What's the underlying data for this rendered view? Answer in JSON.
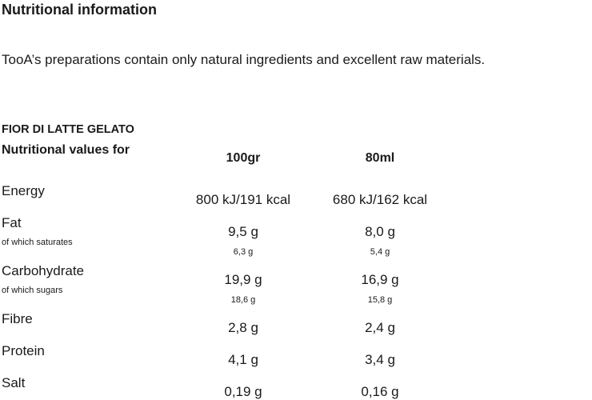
{
  "header": {
    "title": "Nutritional information"
  },
  "intro": "TooA’s preparations contain only natural ingredients and excellent raw materials.",
  "product": "FIOR DI LATTE GELATO",
  "table": {
    "columns": [
      "Nutritional values for",
      "100gr",
      "80ml"
    ],
    "rows": [
      {
        "label": "Energy",
        "values": [
          "800 kJ/191 kcal",
          "680 kJ/162 kcal"
        ]
      },
      {
        "label": "Fat",
        "values": [
          "9,5 g",
          "8,0 g"
        ],
        "sub": {
          "label": "of which saturates",
          "values": [
            "6,3 g",
            "5,4 g"
          ]
        }
      },
      {
        "label": "Carbohydrate",
        "values": [
          "19,9 g",
          "16,9 g"
        ],
        "sub": {
          "label": "of which sugars",
          "values": [
            "18,6 g",
            "15,8 g"
          ]
        }
      },
      {
        "label": "Fibre",
        "values": [
          "2,8 g",
          "2,4 g"
        ]
      },
      {
        "label": "Protein",
        "values": [
          "4,1 g",
          "3,4 g"
        ]
      },
      {
        "label": "Salt",
        "values": [
          "0,19 g",
          "0,16 g"
        ]
      }
    ]
  }
}
